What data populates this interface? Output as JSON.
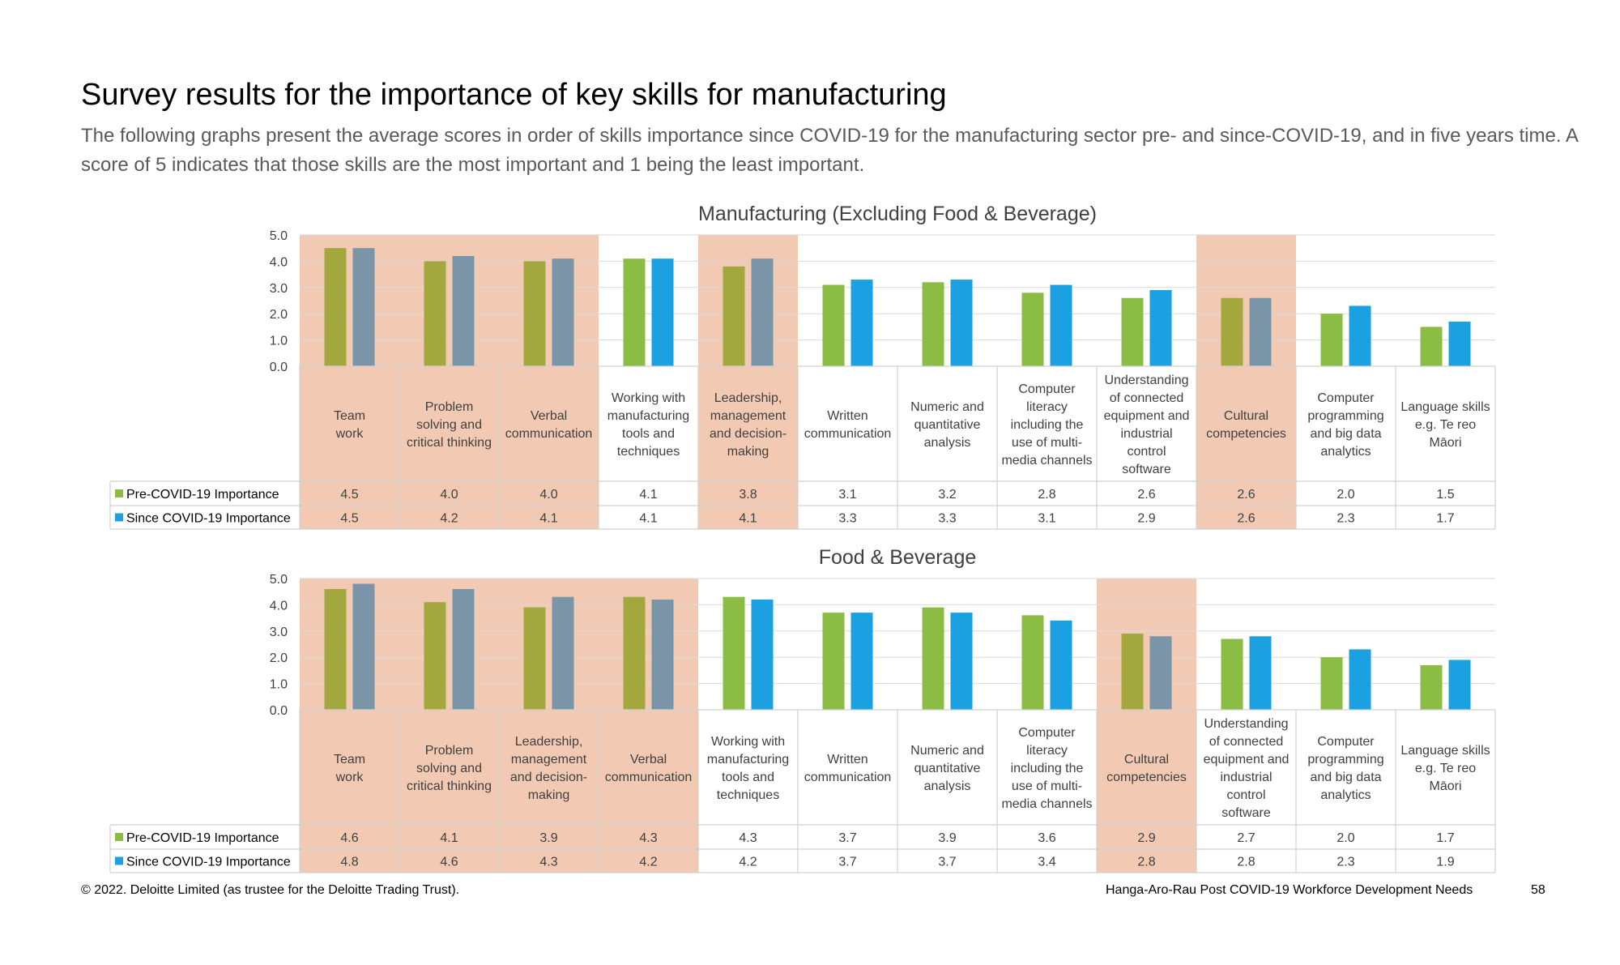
{
  "page": {
    "title": "Survey results for the importance of key skills for manufacturing",
    "subtitle": "The following graphs present the average scores in order of skills importance since COVID-19 for the manufacturing sector pre- and since-COVID-19, and in five years time. A score of 5 indicates that those skills are the most important and 1 being the least important.",
    "footer_left": "© 2022. Deloitte Limited (as trustee for the Deloitte Trading Trust).",
    "footer_right": "Hanga-Aro-Rau Post COVID-19 Workforce Development Needs",
    "page_number": "58"
  },
  "colors": {
    "pre_covid": "#8bbd45",
    "since_covid": "#1ba1e2",
    "pre_covid_highlight": "#a3a83e",
    "since_covid_highlight": "#7b95a8",
    "highlight_band": "#f2cab3",
    "grid": "#d9d9d9",
    "table_border": "#d0d0d0"
  },
  "chart_data": [
    {
      "type": "bar",
      "title": "Manufacturing (Excluding Food & Beverage)",
      "ylim": [
        0,
        5
      ],
      "yticks": [
        "0.0",
        "1.0",
        "2.0",
        "3.0",
        "4.0",
        "5.0"
      ],
      "grid": true,
      "categories": [
        "Teamwork",
        "Problem solving and critical thinking",
        "Verbal communication",
        "Working with manufacturing tools and techniques",
        "Leadership, management and decision-making",
        "Written communication",
        "Numeric and quantitative analysis",
        "Computer literacy including the use of multi-media channels",
        "Understanding of connected equipment and industrial control software",
        "Cultural competencies",
        "Computer programming and big data analytics",
        "Language skills e.g. Te reo Māori"
      ],
      "category_lines": [
        [
          "Team",
          "work"
        ],
        [
          "Problem",
          "solving and",
          "critical thinking"
        ],
        [
          "Verbal",
          "communication"
        ],
        [
          "Working with",
          "manufacturing",
          "tools and",
          "techniques"
        ],
        [
          "Leadership,",
          "management",
          "and decision-",
          "making"
        ],
        [
          "Written",
          "communication"
        ],
        [
          "Numeric and",
          "quantitative",
          "analysis"
        ],
        [
          "Computer",
          "literacy",
          "including the",
          "use of multi-",
          "media channels"
        ],
        [
          "Understanding",
          "of connected",
          "equipment and",
          "industrial",
          "control",
          "software"
        ],
        [
          "Cultural",
          "competencies"
        ],
        [
          "Computer",
          "programming",
          "and big data",
          "analytics"
        ],
        [
          "Language skills",
          "e.g. Te reo",
          "Māori"
        ]
      ],
      "highlighted": [
        true,
        true,
        true,
        false,
        true,
        false,
        false,
        false,
        false,
        true,
        false,
        false
      ],
      "series": [
        {
          "name": "Pre-COVID-19 Importance",
          "values": [
            4.5,
            4.0,
            4.0,
            4.1,
            3.8,
            3.1,
            3.2,
            2.8,
            2.6,
            2.6,
            2.0,
            1.5
          ],
          "labels": [
            "4.5",
            "4.0",
            "4.0",
            "4.1",
            "3.8",
            "3.1",
            "3.2",
            "2.8",
            "2.6",
            "2.6",
            "2.0",
            "1.5"
          ]
        },
        {
          "name": "Since COVID-19 Importance",
          "values": [
            4.5,
            4.2,
            4.1,
            4.1,
            4.1,
            3.3,
            3.3,
            3.1,
            2.9,
            2.6,
            2.3,
            1.7
          ],
          "labels": [
            "4.5",
            "4.2",
            "4.1",
            "4.1",
            "4.1",
            "3.3",
            "3.3",
            "3.1",
            "2.9",
            "2.6",
            "2.3",
            "1.7"
          ]
        }
      ]
    },
    {
      "type": "bar",
      "title": "Food & Beverage",
      "ylim": [
        0,
        5
      ],
      "yticks": [
        "0.0",
        "1.0",
        "2.0",
        "3.0",
        "4.0",
        "5.0"
      ],
      "grid": true,
      "categories": [
        "Teamwork",
        "Problem solving and critical thinking",
        "Leadership, management and decision-making",
        "Verbal communication",
        "Working with manufacturing tools and techniques",
        "Written communication",
        "Numeric and quantitative analysis",
        "Computer literacy including the use of multi-media channels",
        "Cultural competencies",
        "Understanding of connected equipment and industrial control software",
        "Computer programming and big data analytics",
        "Language skills e.g. Te reo Māori"
      ],
      "category_lines": [
        [
          "Team",
          "work"
        ],
        [
          "Problem",
          "solving and",
          "critical thinking"
        ],
        [
          "Leadership,",
          "management",
          "and decision-",
          "making"
        ],
        [
          "Verbal",
          "communication"
        ],
        [
          "Working with",
          "manufacturing",
          "tools and",
          "techniques"
        ],
        [
          "Written",
          "communication"
        ],
        [
          "Numeric and",
          "quantitative",
          "analysis"
        ],
        [
          "Computer",
          "literacy",
          "including the",
          "use of multi-",
          "media channels"
        ],
        [
          "Cultural",
          "competencies"
        ],
        [
          "Understanding",
          "of connected",
          "equipment and",
          "industrial",
          "control",
          "software"
        ],
        [
          "Computer",
          "programming",
          "and big data",
          "analytics"
        ],
        [
          "Language skills",
          "e.g. Te reo",
          "Māori"
        ]
      ],
      "highlighted": [
        true,
        true,
        true,
        true,
        false,
        false,
        false,
        false,
        true,
        false,
        false,
        false
      ],
      "series": [
        {
          "name": "Pre-COVID-19 Importance",
          "values": [
            4.6,
            4.1,
            3.9,
            4.3,
            4.3,
            3.7,
            3.9,
            3.6,
            2.9,
            2.7,
            2.0,
            1.7
          ],
          "labels": [
            "4.6",
            "4.1",
            "3.9",
            "4.3",
            "4.3",
            "3.7",
            "3.9",
            "3.6",
            "2.9",
            "2.7",
            "2.0",
            "1.7"
          ]
        },
        {
          "name": "Since COVID-19 Importance",
          "values": [
            4.8,
            4.6,
            4.3,
            4.2,
            4.2,
            3.7,
            3.7,
            3.4,
            2.8,
            2.8,
            2.3,
            1.9
          ],
          "labels": [
            "4.8",
            "4.6",
            "4.3",
            "4.2",
            "4.2",
            "3.7",
            "3.7",
            "3.4",
            "2.8",
            "2.8",
            "2.3",
            "1.9"
          ]
        }
      ]
    }
  ]
}
